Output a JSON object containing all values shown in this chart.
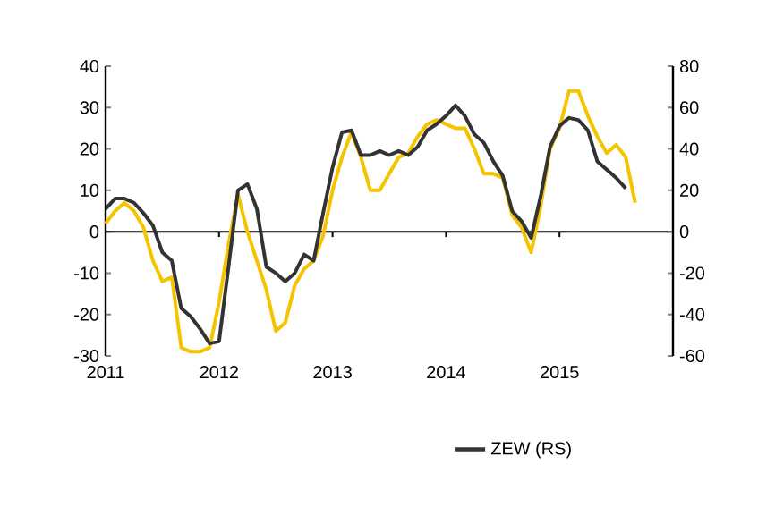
{
  "chart_data": {
    "type": "line",
    "x": [
      "2011-01",
      "2011-02",
      "2011-03",
      "2011-04",
      "2011-05",
      "2011-06",
      "2011-07",
      "2011-08",
      "2011-09",
      "2011-10",
      "2011-11",
      "2011-12",
      "2012-01",
      "2012-02",
      "2012-03",
      "2012-04",
      "2012-05",
      "2012-06",
      "2012-07",
      "2012-08",
      "2012-09",
      "2012-10",
      "2012-11",
      "2012-12",
      "2013-01",
      "2013-02",
      "2013-03",
      "2013-04",
      "2013-05",
      "2013-06",
      "2013-07",
      "2013-08",
      "2013-09",
      "2013-10",
      "2013-11",
      "2013-12",
      "2014-01",
      "2014-02",
      "2014-03",
      "2014-04",
      "2014-05",
      "2014-06",
      "2014-07",
      "2014-08",
      "2014-09",
      "2014-10",
      "2014-11",
      "2014-12",
      "2015-01",
      "2015-02",
      "2015-03",
      "2015-04",
      "2015-05",
      "2015-06",
      "2015-07",
      "2015-08",
      "2015-09"
    ],
    "series": [
      {
        "color": "#f5c400",
        "values": [
          2,
          5,
          7,
          5,
          1,
          -7,
          -12,
          -11,
          -28,
          -29,
          -29,
          -28,
          -17,
          -3,
          9,
          0,
          -7,
          -14,
          -24,
          -22,
          -13,
          -9,
          -7,
          -1,
          10,
          18,
          24,
          18,
          10,
          10,
          14,
          18,
          19,
          23,
          26,
          27,
          26,
          25,
          25,
          20,
          14,
          14,
          13,
          4,
          1,
          -5,
          6,
          20,
          25,
          34,
          34,
          28,
          23,
          19,
          21,
          18,
          7
        ]
      },
      {
        "name": "ZEW (RS)",
        "color": "#333333",
        "axis": "y2",
        "values": [
          11,
          16,
          16,
          14,
          9,
          3,
          -10,
          -14,
          -37,
          -41,
          -47,
          -54,
          -53,
          -17,
          20,
          23,
          11,
          -17,
          -20,
          -24,
          -20,
          -11,
          -14,
          9,
          31,
          48,
          49,
          37,
          37,
          39,
          37,
          39,
          37,
          41,
          49,
          52,
          56,
          61,
          56,
          47,
          43,
          34,
          27,
          10,
          5,
          -3,
          17,
          41,
          51,
          55,
          54,
          49,
          34,
          30,
          26,
          21,
          null
        ]
      }
    ],
    "xlim": [
      "2011-01",
      "2016-01"
    ],
    "xticks": [
      {
        "value": "2011",
        "label": "2011"
      },
      {
        "value": "2012",
        "label": "2012"
      },
      {
        "value": "2013",
        "label": "2013"
      },
      {
        "value": "2014",
        "label": "2014"
      },
      {
        "value": "2015",
        "label": "2015"
      }
    ],
    "ylim": [
      -30,
      40
    ],
    "yticks": [
      -30,
      -20,
      -10,
      0,
      10,
      20,
      30,
      40
    ],
    "y2lim": [
      -60,
      80
    ],
    "y2ticks": [
      -60,
      -40,
      -20,
      0,
      20,
      40,
      60,
      80
    ],
    "ref_lines": [
      {
        "axis": "y",
        "value": 0,
        "color": "#000000"
      }
    ],
    "grid": false,
    "legend": "bottom",
    "marker": "none",
    "line_style": "solid"
  }
}
